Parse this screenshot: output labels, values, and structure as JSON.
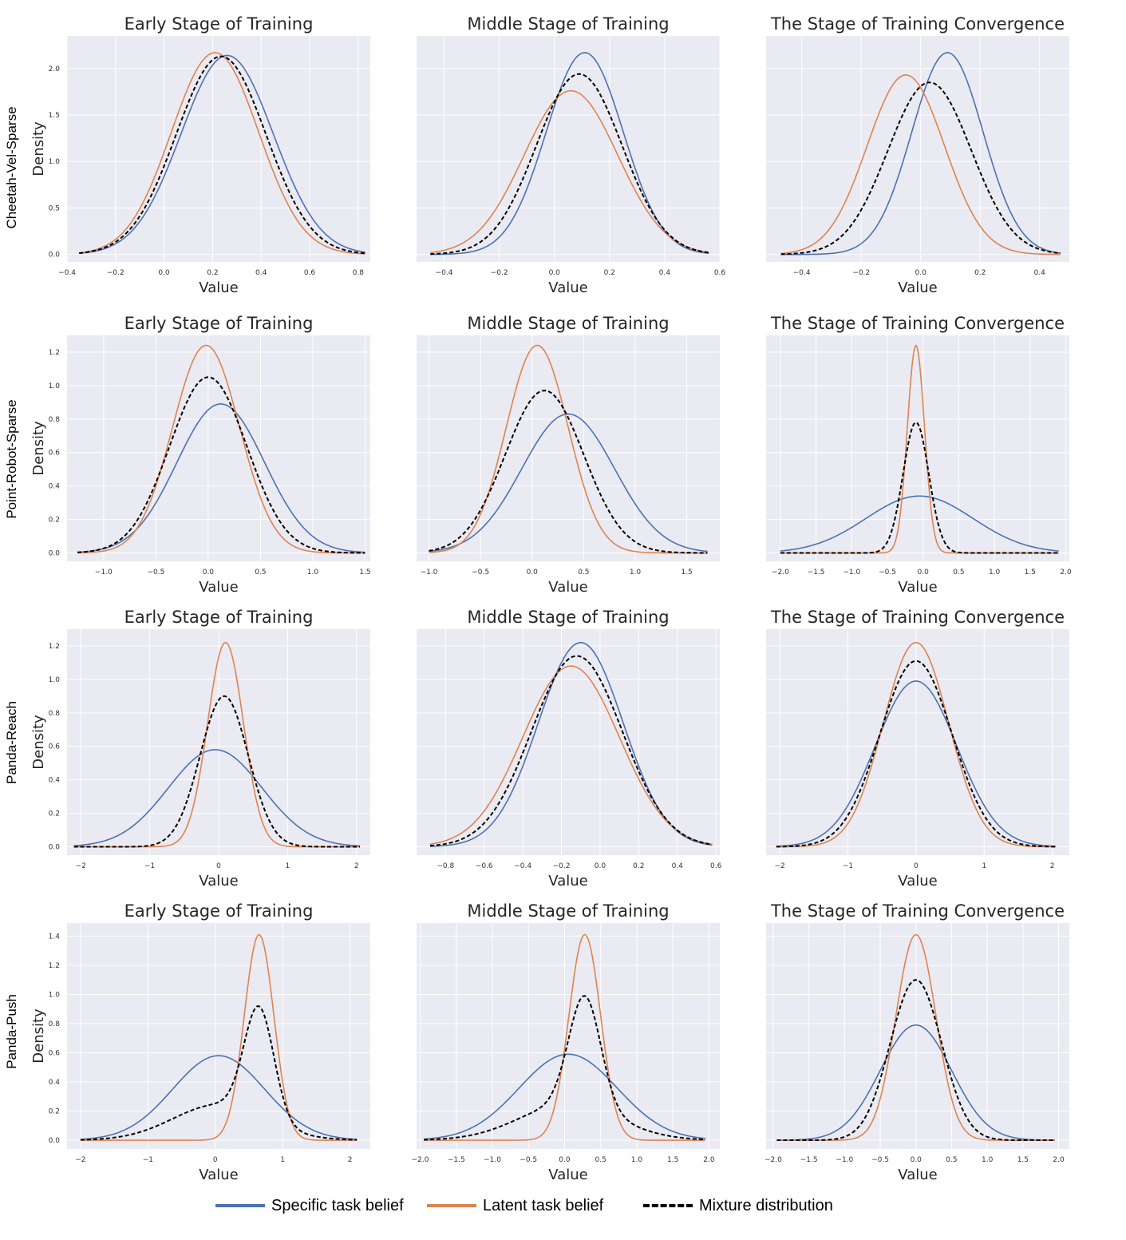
{
  "colors": {
    "specific": "#4c72b0",
    "latent": "#dd8452",
    "mixture": "#000000",
    "background": "#eaeaf2",
    "grid": "#ffffff"
  },
  "legend": {
    "specific": "Specific task belief",
    "latent": "Latent task belief",
    "mixture": "Mixture distribution"
  },
  "row_labels": [
    "Cheetah-Vel-Sparse",
    "Point-Robot-Sparse",
    "Panda-Reach",
    "Panda-Push"
  ],
  "chart_data": [
    {
      "type": "line",
      "row": 0,
      "col": 0,
      "title": "Early Stage of Training",
      "xlabel": "Value",
      "ylabel": "Density",
      "xlim": [
        -0.4,
        0.85
      ],
      "ylim": [
        -0.08,
        2.35
      ],
      "xticks": [
        -0.4,
        -0.2,
        0.0,
        0.2,
        0.4,
        0.6,
        0.8
      ],
      "yticks": [
        0.0,
        0.5,
        1.0,
        1.5,
        2.0
      ],
      "x_range": [
        -0.35,
        0.83
      ],
      "series": [
        {
          "key": "specific",
          "mu": 0.26,
          "sd": 0.19,
          "peak": 2.14
        },
        {
          "key": "latent",
          "mu": 0.21,
          "sd": 0.18,
          "peak": 2.17
        },
        {
          "key": "mixture",
          "mu": 0.235,
          "sd": 0.185,
          "peak": 2.13
        }
      ]
    },
    {
      "type": "line",
      "row": 0,
      "col": 1,
      "title": "Middle Stage of Training",
      "xlabel": "Value",
      "ylabel": "",
      "xlim": [
        -0.5,
        0.6
      ],
      "ylim": [
        -0.08,
        2.35
      ],
      "xticks": [
        -0.4,
        -0.2,
        0.0,
        0.2,
        0.4,
        0.6
      ],
      "yticks": [],
      "x_range": [
        -0.45,
        0.56
      ],
      "series": [
        {
          "key": "specific",
          "mu": 0.11,
          "sd": 0.14,
          "peak": 2.17
        },
        {
          "key": "latent",
          "mu": 0.06,
          "sd": 0.17,
          "peak": 1.76
        },
        {
          "key": "mixture",
          "mu": 0.09,
          "sd": 0.155,
          "peak": 1.94
        }
      ]
    },
    {
      "type": "line",
      "row": 0,
      "col": 2,
      "title": "The Stage of Training Convergence",
      "xlabel": "Value",
      "ylabel": "",
      "xlim": [
        -0.52,
        0.5
      ],
      "ylim": [
        -0.08,
        2.35
      ],
      "xticks": [
        -0.4,
        -0.2,
        0.0,
        0.2,
        0.4
      ],
      "yticks": [],
      "x_range": [
        -0.47,
        0.47
      ],
      "series": [
        {
          "key": "specific",
          "mu": 0.09,
          "sd": 0.12,
          "peak": 2.17
        },
        {
          "key": "latent",
          "mu": -0.05,
          "sd": 0.13,
          "peak": 1.93
        },
        {
          "key": "mixture",
          "mu": 0.03,
          "sd": 0.14,
          "peak": 1.85
        }
      ]
    },
    {
      "type": "line",
      "row": 1,
      "col": 0,
      "title": "Early Stage of Training",
      "xlabel": "Value",
      "ylabel": "Density",
      "xlim": [
        -1.35,
        1.55
      ],
      "ylim": [
        -0.05,
        1.3
      ],
      "xticks": [
        -1.0,
        -0.5,
        0.0,
        0.5,
        1.0,
        1.5
      ],
      "yticks": [
        0.0,
        0.2,
        0.4,
        0.6,
        0.8,
        1.0,
        1.2
      ],
      "x_range": [
        -1.25,
        1.5
      ],
      "series": [
        {
          "key": "specific",
          "mu": 0.12,
          "sd": 0.42,
          "peak": 0.89
        },
        {
          "key": "latent",
          "mu": -0.02,
          "sd": 0.32,
          "peak": 1.24
        },
        {
          "key": "mixture",
          "mu": 0.0,
          "sd": 0.37,
          "peak": 1.05
        }
      ]
    },
    {
      "type": "line",
      "row": 1,
      "col": 1,
      "title": "Middle Stage of Training",
      "xlabel": "Value",
      "ylabel": "",
      "xlim": [
        -1.12,
        1.82
      ],
      "ylim": [
        -0.05,
        1.3
      ],
      "xticks": [
        -1.0,
        -0.5,
        0.0,
        0.5,
        1.0,
        1.5
      ],
      "yticks": [],
      "x_range": [
        -1.0,
        1.7
      ],
      "series": [
        {
          "key": "specific",
          "mu": 0.35,
          "sd": 0.45,
          "peak": 0.83
        },
        {
          "key": "latent",
          "mu": 0.05,
          "sd": 0.3,
          "peak": 1.24
        },
        {
          "key": "mixture",
          "mu": 0.12,
          "sd": 0.38,
          "peak": 0.97
        }
      ]
    },
    {
      "type": "line",
      "row": 1,
      "col": 2,
      "title": "The Stage of Training Convergence",
      "xlabel": "Value",
      "ylabel": "",
      "xlim": [
        -2.2,
        2.05
      ],
      "ylim": [
        -0.05,
        1.3
      ],
      "xticks": [
        -2.0,
        -1.5,
        -1.0,
        -0.5,
        0.0,
        0.5,
        1.0,
        1.5,
        2.0
      ],
      "yticks": [],
      "x_range": [
        -2.0,
        1.9
      ],
      "series": [
        {
          "key": "specific",
          "mu": -0.05,
          "sd": 0.75,
          "peak": 0.34
        },
        {
          "key": "latent",
          "mu": -0.1,
          "sd": 0.12,
          "peak": 1.24
        },
        {
          "key": "mixture",
          "mu": -0.1,
          "sd": 0.18,
          "peak": 0.78
        }
      ]
    },
    {
      "type": "line",
      "row": 2,
      "col": 0,
      "title": "Early Stage of Training",
      "xlabel": "Value",
      "ylabel": "Density",
      "xlim": [
        -2.2,
        2.2
      ],
      "ylim": [
        -0.05,
        1.3
      ],
      "xticks": [
        -2,
        -1,
        0,
        1,
        2
      ],
      "yticks": [
        0.0,
        0.2,
        0.4,
        0.6,
        0.8,
        1.0,
        1.2
      ],
      "x_range": [
        -2.1,
        2.05
      ],
      "series": [
        {
          "key": "specific",
          "mu": -0.05,
          "sd": 0.68,
          "peak": 0.58
        },
        {
          "key": "latent",
          "mu": 0.1,
          "sd": 0.26,
          "peak": 1.22
        },
        {
          "key": "mixture",
          "mu": 0.08,
          "sd": 0.35,
          "peak": 0.9
        }
      ]
    },
    {
      "type": "line",
      "row": 2,
      "col": 1,
      "title": "Middle Stage of Training",
      "xlabel": "Value",
      "ylabel": "",
      "xlim": [
        -0.95,
        0.62
      ],
      "ylim": [
        -0.05,
        1.3
      ],
      "xticks": [
        -0.8,
        -0.6,
        -0.4,
        -0.2,
        0.0,
        0.2,
        0.4,
        0.6
      ],
      "yticks": [],
      "x_range": [
        -0.88,
        0.58
      ],
      "series": [
        {
          "key": "specific",
          "mu": -0.1,
          "sd": 0.22,
          "peak": 1.22
        },
        {
          "key": "latent",
          "mu": -0.15,
          "sd": 0.25,
          "peak": 1.08
        },
        {
          "key": "mixture",
          "mu": -0.12,
          "sd": 0.235,
          "peak": 1.14
        }
      ]
    },
    {
      "type": "line",
      "row": 2,
      "col": 2,
      "title": "The Stage of Training Convergence",
      "xlabel": "Value",
      "ylabel": "",
      "xlim": [
        -2.2,
        2.25
      ],
      "ylim": [
        -0.05,
        1.3
      ],
      "xticks": [
        -2,
        -1,
        0,
        1,
        2
      ],
      "yticks": [],
      "x_range": [
        -2.05,
        2.05
      ],
      "series": [
        {
          "key": "specific",
          "mu": 0.0,
          "sd": 0.6,
          "peak": 0.99
        },
        {
          "key": "latent",
          "mu": 0.0,
          "sd": 0.48,
          "peak": 1.22
        },
        {
          "key": "mixture",
          "mu": 0.0,
          "sd": 0.53,
          "peak": 1.11
        }
      ]
    },
    {
      "type": "line",
      "row": 3,
      "col": 0,
      "title": "Early Stage of Training",
      "xlabel": "Value",
      "ylabel": "Density",
      "xlim": [
        -2.2,
        2.3
      ],
      "ylim": [
        -0.06,
        1.49
      ],
      "xticks": [
        -2,
        -1,
        0,
        1,
        2
      ],
      "yticks": [
        0.0,
        0.2,
        0.4,
        0.6,
        0.8,
        1.0,
        1.2,
        1.4
      ],
      "x_range": [
        -2.0,
        2.1
      ],
      "series": [
        {
          "key": "specific",
          "mu": 0.05,
          "sd": 0.68,
          "peak": 0.58
        },
        {
          "key": "latent",
          "mu": 0.65,
          "sd": 0.22,
          "peak": 1.41
        },
        {
          "key": "mixture",
          "type": "mixture",
          "components": [
            {
              "w": 0.5,
              "mu": 0.05,
              "sd": 0.68
            },
            {
              "w": 0.5,
              "mu": 0.65,
              "sd": 0.22
            }
          ],
          "peak": 0.92
        }
      ]
    },
    {
      "type": "line",
      "row": 3,
      "col": 1,
      "title": "Middle Stage of Training",
      "xlabel": "Value",
      "ylabel": "",
      "xlim": [
        -2.05,
        2.15
      ],
      "ylim": [
        -0.06,
        1.49
      ],
      "xticks": [
        -2.0,
        -1.5,
        -1.0,
        -0.5,
        0.0,
        0.5,
        1.0,
        1.5,
        2.0
      ],
      "yticks": [],
      "x_range": [
        -1.95,
        1.95
      ],
      "series": [
        {
          "key": "specific",
          "mu": 0.05,
          "sd": 0.68,
          "peak": 0.59
        },
        {
          "key": "latent",
          "mu": 0.28,
          "sd": 0.22,
          "peak": 1.41
        },
        {
          "key": "mixture",
          "type": "mixture",
          "components": [
            {
              "w": 0.5,
              "mu": 0.05,
              "sd": 0.68
            },
            {
              "w": 0.5,
              "mu": 0.28,
              "sd": 0.22
            }
          ],
          "peak": 0.99
        }
      ]
    },
    {
      "type": "line",
      "row": 3,
      "col": 2,
      "title": "The Stage of Training Convergence",
      "xlabel": "Value",
      "ylabel": "",
      "xlim": [
        -2.1,
        2.15
      ],
      "ylim": [
        -0.06,
        1.49
      ],
      "xticks": [
        -2.0,
        -1.5,
        -1.0,
        -0.5,
        0.0,
        0.5,
        1.0,
        1.5,
        2.0
      ],
      "yticks": [],
      "x_range": [
        -1.95,
        1.95
      ],
      "series": [
        {
          "key": "specific",
          "mu": 0.0,
          "sd": 0.5,
          "peak": 0.79
        },
        {
          "key": "latent",
          "mu": 0.0,
          "sd": 0.28,
          "peak": 1.41
        },
        {
          "key": "mixture",
          "mu": 0.0,
          "sd": 0.36,
          "peak": 1.1
        }
      ]
    }
  ]
}
